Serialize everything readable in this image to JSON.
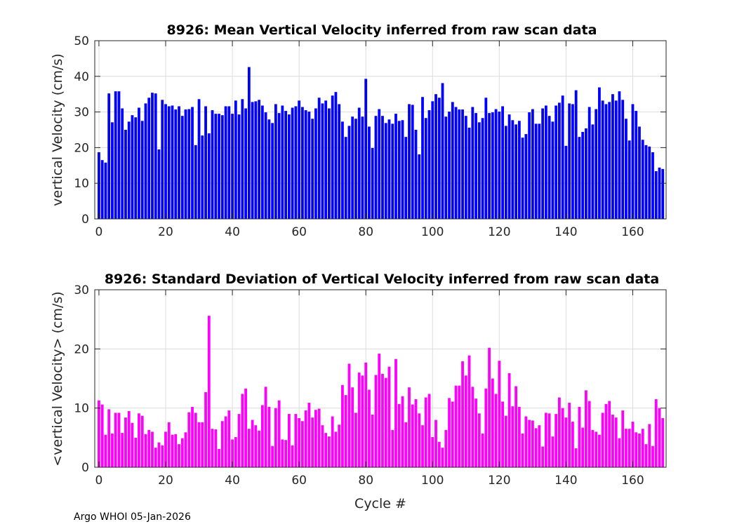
{
  "footer": "Argo WHOI 05-Jan-2026",
  "chart_data": [
    {
      "type": "bar",
      "title": "8926: Mean Vertical Velocity inferred from raw scan data",
      "xlabel": "",
      "ylabel": "vertical Velocity (cm/s)",
      "color": "#0000ff",
      "xlim": [
        -1.25,
        170
      ],
      "ylim": [
        0,
        50
      ],
      "xticks": [
        0,
        20,
        40,
        60,
        80,
        100,
        120,
        140,
        160
      ],
      "yticks": [
        0,
        10,
        20,
        30,
        40,
        50
      ],
      "grid": true,
      "x_start": 0,
      "values": [
        18.7,
        16.5,
        15.8,
        35.2,
        27.1,
        35.8,
        35.8,
        31.0,
        25.0,
        27.3,
        29.1,
        28.5,
        31.2,
        27.5,
        32.4,
        34.0,
        35.4,
        35.2,
        19.5,
        33.4,
        32.2,
        31.6,
        31.8,
        30.7,
        31.6,
        28.9,
        30.7,
        30.8,
        31.4,
        20.7,
        33.6,
        23.4,
        31.6,
        24.0,
        30.5,
        29.5,
        29.5,
        29.1,
        31.6,
        31.6,
        29.5,
        33.2,
        29.3,
        33.6,
        31.0,
        42.6,
        32.8,
        33.0,
        33.4,
        31.8,
        29.9,
        27.9,
        26.9,
        32.2,
        29.7,
        31.8,
        30.3,
        29.3,
        31.2,
        31.6,
        33.2,
        31.4,
        30.5,
        30.1,
        28.1,
        31.0,
        34.0,
        32.4,
        33.2,
        31.0,
        34.6,
        35.6,
        32.2,
        27.3,
        23.0,
        26.1,
        28.7,
        28.1,
        31.2,
        28.7,
        39.3,
        25.9,
        19.9,
        28.9,
        30.8,
        28.9,
        26.9,
        27.9,
        26.7,
        29.5,
        27.5,
        27.7,
        23.0,
        32.2,
        32.0,
        25.0,
        18.1,
        34.2,
        28.3,
        30.5,
        33.0,
        35.0,
        34.0,
        38.1,
        28.7,
        30.1,
        32.8,
        31.4,
        30.7,
        30.7,
        28.9,
        25.6,
        31.4,
        29.7,
        27.1,
        28.3,
        34.0,
        29.7,
        29.9,
        30.8,
        30.1,
        31.6,
        26.1,
        29.3,
        27.7,
        26.5,
        27.5,
        22.8,
        23.8,
        29.9,
        30.8,
        26.7,
        26.7,
        31.0,
        31.8,
        28.9,
        27.3,
        31.8,
        32.6,
        34.6,
        20.5,
        32.4,
        32.2,
        36.1,
        23.0,
        24.4,
        25.4,
        31.4,
        26.5,
        30.8,
        36.9,
        33.2,
        32.2,
        32.8,
        35.0,
        33.2,
        35.8,
        33.4,
        28.1,
        22.0,
        32.2,
        30.3,
        25.9,
        22.2,
        20.7,
        20.3,
        18.7,
        13.4,
        14.4,
        14.0
      ]
    },
    {
      "type": "bar",
      "title": "8926: Standard Deviation of Vertical Velocity inferred from raw scan data",
      "xlabel": "Cycle #",
      "ylabel": "<vertical Velocity> (cm/s)",
      "color": "#ff00ff",
      "xlim": [
        -1.25,
        170
      ],
      "ylim": [
        0,
        30
      ],
      "xticks": [
        0,
        20,
        40,
        60,
        80,
        100,
        120,
        140,
        160
      ],
      "yticks": [
        0,
        10,
        20,
        30
      ],
      "grid": true,
      "x_start": 0,
      "values": [
        11.3,
        10.6,
        5.5,
        9.8,
        5.7,
        9.2,
        9.2,
        5.8,
        8.4,
        9.5,
        7.5,
        5.0,
        9.1,
        8.7,
        5.6,
        6.3,
        6.0,
        3.3,
        4.2,
        3.7,
        6.0,
        7.6,
        5.5,
        5.6,
        3.9,
        4.9,
        5.9,
        9.3,
        10.2,
        9.2,
        7.6,
        7.6,
        12.7,
        25.6,
        6.5,
        6.4,
        3.1,
        7.8,
        8.6,
        9.6,
        4.7,
        5.1,
        9.0,
        12.4,
        13.3,
        6.5,
        8.0,
        7.1,
        6.2,
        10.5,
        13.6,
        10.2,
        3.6,
        10.0,
        11.3,
        4.7,
        4.6,
        9.0,
        3.7,
        9.0,
        8.3,
        7.8,
        9.6,
        10.9,
        8.4,
        9.7,
        9.9,
        7.1,
        5.8,
        5.2,
        8.6,
        6.0,
        7.2,
        13.9,
        12.2,
        17.5,
        13.5,
        9.2,
        16.0,
        15.5,
        17.7,
        13.1,
        8.9,
        15.6,
        19.2,
        15.8,
        15.1,
        17.0,
        6.3,
        18.3,
        10.7,
        12.0,
        7.6,
        13.5,
        10.6,
        11.5,
        9.1,
        7.1,
        11.8,
        12.4,
        5.1,
        8.0,
        4.3,
        3.3,
        6.3,
        11.7,
        11.1,
        13.8,
        13.8,
        17.9,
        15.5,
        18.9,
        13.6,
        11.6,
        9.1,
        5.7,
        13.3,
        20.2,
        15.0,
        12.4,
        18.0,
        11.1,
        8.7,
        15.9,
        10.3,
        13.7,
        10.2,
        5.7,
        8.6,
        8.0,
        7.9,
        6.6,
        7.1,
        3.5,
        9.2,
        9.1,
        5.2,
        9.0,
        11.8,
        10.0,
        8.4,
        10.9,
        7.7,
        3.2,
        10.2,
        6.7,
        13.0,
        11.2,
        6.3,
        6.0,
        5.5,
        9.2,
        10.7,
        11.2,
        8.9,
        8.4,
        4.9,
        9.6,
        6.5,
        6.5,
        7.7,
        5.9,
        5.7,
        6.5,
        3.9,
        7.3,
        3.6,
        11.5,
        10.0,
        8.3
      ]
    }
  ]
}
